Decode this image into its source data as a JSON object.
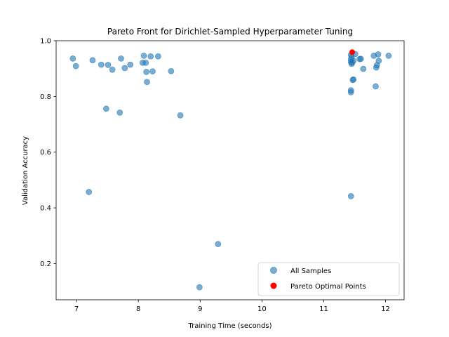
{
  "chart_data": {
    "type": "scatter",
    "title": "Pareto Front for Dirichlet-Sampled Hyperparameter Tuning",
    "xlabel": "Training Time (seconds)",
    "ylabel": "Validation Accuracy",
    "xlim": [
      6.67,
      12.3
    ],
    "ylim": [
      0.07,
      1.0
    ],
    "xticks": [
      7,
      8,
      9,
      10,
      11,
      12
    ],
    "yticks": [
      0.2,
      0.4,
      0.6,
      0.8,
      1.0
    ],
    "xtick_labels": [
      "7",
      "8",
      "9",
      "10",
      "11",
      "12"
    ],
    "ytick_labels": [
      "0.2",
      "0.4",
      "0.6",
      "0.8",
      "1.0"
    ],
    "grid": false,
    "legend_position": "lower-right",
    "series": [
      {
        "name": "All Samples",
        "color": "#1f77b4",
        "points": [
          [
            6.94,
            0.936
          ],
          [
            6.99,
            0.909
          ],
          [
            7.26,
            0.93
          ],
          [
            7.4,
            0.914
          ],
          [
            7.51,
            0.913
          ],
          [
            7.58,
            0.896
          ],
          [
            7.72,
            0.936
          ],
          [
            7.78,
            0.902
          ],
          [
            7.87,
            0.914
          ],
          [
            8.07,
            0.921
          ],
          [
            8.09,
            0.946
          ],
          [
            8.12,
            0.921
          ],
          [
            8.13,
            0.888
          ],
          [
            8.2,
            0.944
          ],
          [
            8.23,
            0.89
          ],
          [
            8.32,
            0.944
          ],
          [
            8.53,
            0.891
          ],
          [
            8.14,
            0.852
          ],
          [
            7.48,
            0.756
          ],
          [
            7.7,
            0.742
          ],
          [
            8.68,
            0.732
          ],
          [
            7.2,
            0.457
          ],
          [
            9.29,
            0.27
          ],
          [
            8.99,
            0.115
          ],
          [
            11.44,
            0.949
          ],
          [
            11.45,
            0.941
          ],
          [
            11.44,
            0.933
          ],
          [
            11.44,
            0.924
          ],
          [
            11.45,
            0.917
          ],
          [
            11.46,
            0.921
          ],
          [
            11.48,
            0.928
          ],
          [
            11.51,
            0.952
          ],
          [
            11.58,
            0.934
          ],
          [
            11.6,
            0.935
          ],
          [
            11.64,
            0.899
          ],
          [
            11.81,
            0.946
          ],
          [
            11.88,
            0.951
          ],
          [
            11.85,
            0.904
          ],
          [
            11.86,
            0.912
          ],
          [
            11.89,
            0.928
          ],
          [
            12.05,
            0.946
          ],
          [
            11.47,
            0.859
          ],
          [
            11.48,
            0.861
          ],
          [
            11.44,
            0.822
          ],
          [
            11.44,
            0.815
          ],
          [
            11.84,
            0.836
          ],
          [
            11.44,
            0.442
          ]
        ]
      },
      {
        "name": "Pareto Optimal Points",
        "color": "#ff0000",
        "points": [
          [
            11.46,
            0.959
          ]
        ]
      }
    ]
  }
}
